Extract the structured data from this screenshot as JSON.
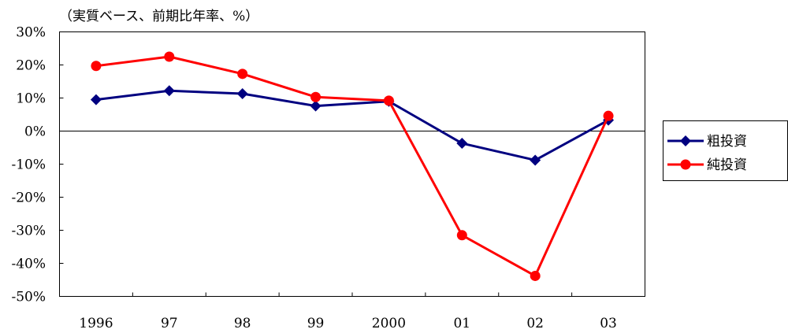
{
  "chart_data": {
    "type": "line",
    "unit_label": "（実質ベース、前期比年率、%）",
    "categories": [
      "1996",
      "97",
      "98",
      "99",
      "2000",
      "01",
      "02",
      "03"
    ],
    "y_ticks": [
      "30%",
      "20%",
      "10%",
      "0%",
      "-10%",
      "-20%",
      "-30%",
      "-40%",
      "-50%"
    ],
    "ylim": [
      -50,
      30
    ],
    "grid": false,
    "legend_position": "right",
    "series": [
      {
        "name": "粗投資",
        "color": "#000080",
        "marker": "diamond",
        "values": [
          9.5,
          12.2,
          11.3,
          7.6,
          9.0,
          -3.7,
          -8.8,
          3.3
        ]
      },
      {
        "name": "純投資",
        "color": "#ff0000",
        "marker": "circle",
        "values": [
          19.7,
          22.5,
          17.3,
          10.3,
          9.2,
          -31.5,
          -43.8,
          4.6
        ]
      }
    ]
  }
}
